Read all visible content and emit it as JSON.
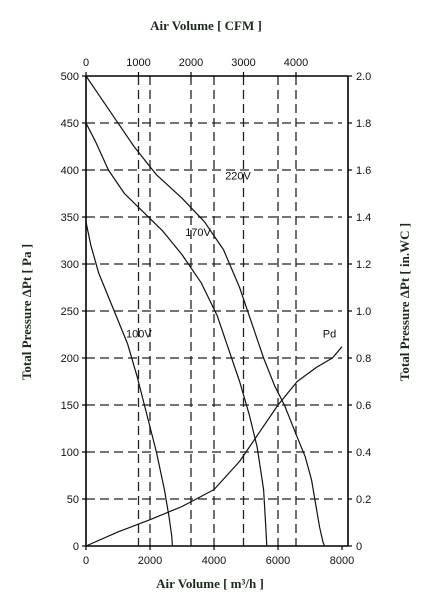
{
  "chart_data": {
    "type": "line",
    "title": "",
    "xlabel_bottom": "Air Volume  [ m³/h ]",
    "xlabel_top": "Air Volume  [ CFM ]",
    "ylabel_left": "Total  Pressure  ΔPt  [ Pa ]",
    "ylabel_right": "Total  Pressure  ΔPt  [ in.WC ]",
    "x_bottom": {
      "min": 0,
      "max": 8000,
      "ticks": [
        0,
        2000,
        4000,
        6000,
        8000
      ],
      "tick_labels": [
        "0",
        "2000",
        "4000",
        "6000",
        "8000"
      ]
    },
    "x_top": {
      "ticks": [
        0,
        1000,
        2000,
        3000,
        4000
      ],
      "tick_labels": [
        "0",
        "1000",
        "2000",
        "3000",
        "4000"
      ]
    },
    "y_left": {
      "min": 0,
      "max": 500,
      "ticks": [
        0,
        50,
        100,
        150,
        200,
        250,
        300,
        350,
        400,
        450,
        500
      ],
      "tick_labels": [
        "0",
        "50",
        "100",
        "150",
        "200",
        "250",
        "300",
        "350",
        "400",
        "450",
        "500"
      ]
    },
    "y_right": {
      "ticks": [
        0,
        0.2,
        0.4,
        0.6,
        0.8,
        1.0,
        1.2,
        1.4,
        1.6,
        1.8,
        2.0
      ],
      "tick_labels": [
        "0",
        "0.2",
        "0.4",
        "0.6",
        "0.8",
        "1.0",
        "1.2",
        "1.4",
        "1.6",
        "1.8",
        "2.0"
      ]
    },
    "grid": true,
    "series": [
      {
        "name": "220V",
        "label_at": [
          4350,
          390
        ],
        "points": [
          [
            0,
            500
          ],
          [
            400,
            480
          ],
          [
            900,
            455
          ],
          [
            1500,
            425
          ],
          [
            2200,
            395
          ],
          [
            3000,
            370
          ],
          [
            3700,
            345
          ],
          [
            4300,
            315
          ],
          [
            4800,
            275
          ],
          [
            5200,
            235
          ],
          [
            5550,
            200
          ],
          [
            5900,
            170
          ],
          [
            6200,
            150
          ],
          [
            6550,
            120
          ],
          [
            6850,
            95
          ],
          [
            7050,
            70
          ],
          [
            7200,
            40
          ],
          [
            7300,
            20
          ],
          [
            7400,
            5
          ],
          [
            7450,
            0
          ]
        ]
      },
      {
        "name": "170V",
        "label_at": [
          3100,
          330
        ],
        "points": [
          [
            0,
            450
          ],
          [
            300,
            430
          ],
          [
            700,
            400
          ],
          [
            1200,
            375
          ],
          [
            1800,
            355
          ],
          [
            2400,
            335
          ],
          [
            3000,
            310
          ],
          [
            3600,
            280
          ],
          [
            4100,
            245
          ],
          [
            4500,
            205
          ],
          [
            4800,
            175
          ],
          [
            5100,
            140
          ],
          [
            5350,
            105
          ],
          [
            5550,
            60
          ],
          [
            5620,
            20
          ],
          [
            5650,
            0
          ]
        ]
      },
      {
        "name": "100V",
        "label_at": [
          1250,
          222
        ],
        "points": [
          [
            0,
            345
          ],
          [
            150,
            320
          ],
          [
            400,
            290
          ],
          [
            700,
            265
          ],
          [
            1000,
            240
          ],
          [
            1300,
            215
          ],
          [
            1600,
            180
          ],
          [
            1900,
            140
          ],
          [
            2200,
            100
          ],
          [
            2450,
            60
          ],
          [
            2600,
            30
          ],
          [
            2680,
            10
          ],
          [
            2700,
            0
          ]
        ]
      },
      {
        "name": "Pd",
        "label_at": [
          7400,
          222
        ],
        "points": [
          [
            0,
            0
          ],
          [
            1000,
            15
          ],
          [
            2000,
            28
          ],
          [
            3000,
            42
          ],
          [
            4000,
            60
          ],
          [
            4800,
            90
          ],
          [
            5400,
            120
          ],
          [
            6000,
            150
          ],
          [
            6600,
            175
          ],
          [
            7200,
            190
          ],
          [
            7700,
            200
          ],
          [
            8000,
            212
          ]
        ]
      }
    ]
  }
}
